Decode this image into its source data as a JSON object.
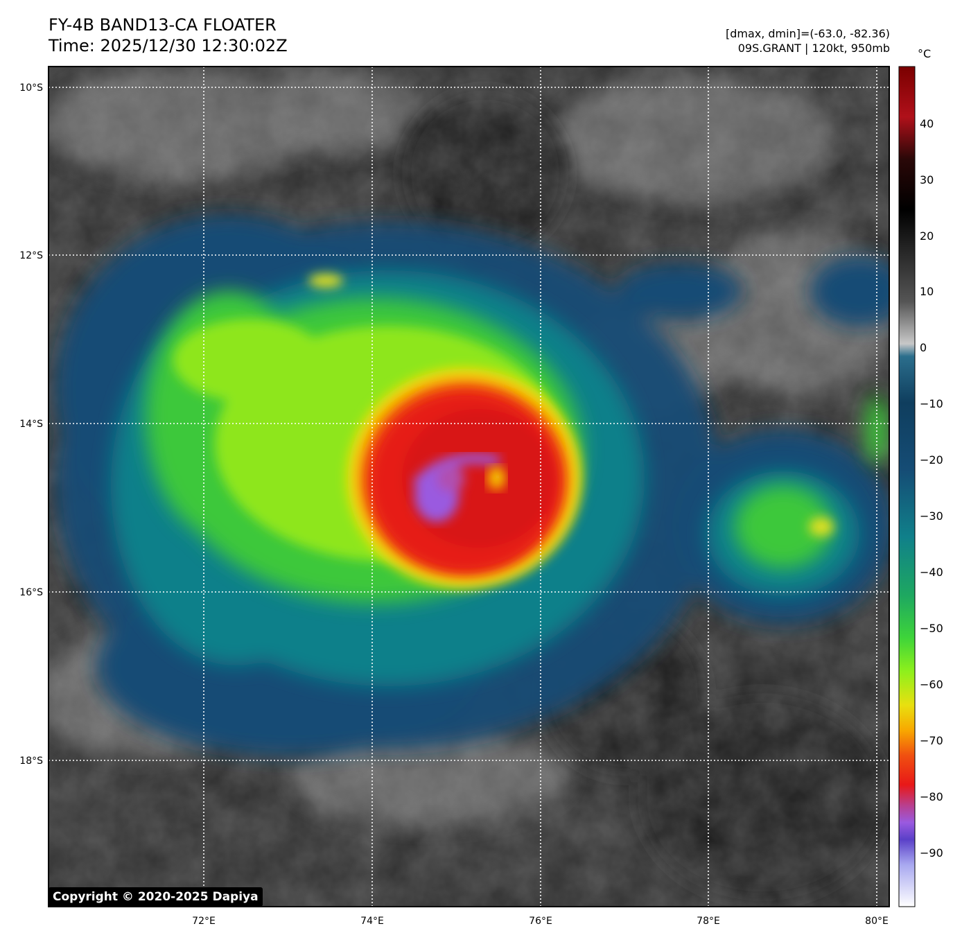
{
  "header": {
    "title_line1": "FY-4B BAND13-CA FLOATER",
    "title_line2": "Time: 2025/12/30 12:30:02Z",
    "info_line1": "[dmax, dmin]=(-63.0, -82.36)",
    "info_line2": "09S.GRANT | 120kt, 950mb"
  },
  "map": {
    "lon_labels": [
      "72°E",
      "74°E",
      "76°E",
      "78°E",
      "80°E"
    ],
    "lat_labels": [
      "10°S",
      "12°S",
      "14°S",
      "16°S",
      "18°S"
    ],
    "storm_center": {
      "lon": 75.4,
      "lat": -14.75
    }
  },
  "colorbar": {
    "unit": "°C",
    "ticks": [
      "40",
      "30",
      "20",
      "10",
      "0",
      "−10",
      "−20",
      "−30",
      "−40",
      "−50",
      "−60",
      "−70",
      "−80",
      "−90"
    ]
  },
  "copyright": "Copyright © 2020-2025 Dapiya"
}
